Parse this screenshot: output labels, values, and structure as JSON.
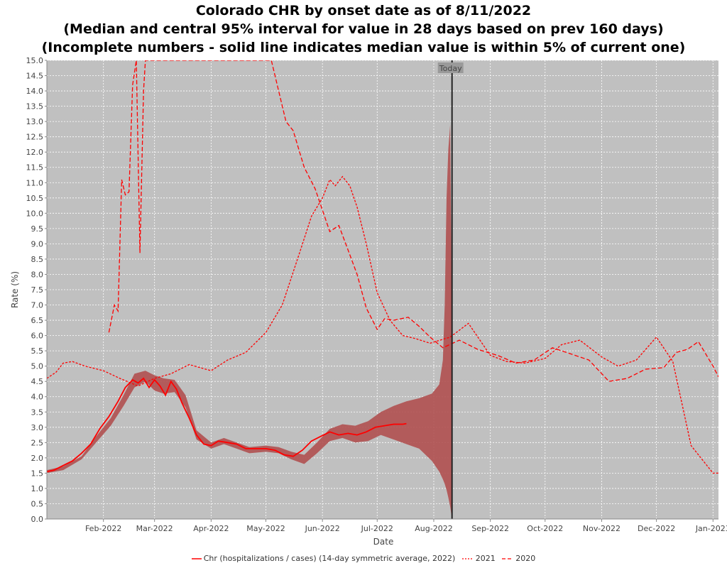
{
  "chart_data": {
    "type": "line",
    "title": [
      "Colorado CHR by onset date as of 8/11/2022",
      "(Median and central 95% interval for value in 28 days based on prev 160 days)",
      "(Incomplete numbers - solid line indicates median value is within 5% of current one)"
    ],
    "xlabel": "Date",
    "ylabel": "Rate (%)",
    "ylim": [
      0,
      15
    ],
    "yticks": [
      0.0,
      0.5,
      1.0,
      1.5,
      2.0,
      2.5,
      3.0,
      3.5,
      4.0,
      4.5,
      5.0,
      5.5,
      6.0,
      6.5,
      7.0,
      7.5,
      8.0,
      8.5,
      9.0,
      9.5,
      10.0,
      10.5,
      11.0,
      11.5,
      12.0,
      12.5,
      13.0,
      13.5,
      14.0,
      14.5,
      15.0
    ],
    "xlim": [
      "2022-01-01",
      "2023-01-04"
    ],
    "xticks": [
      {
        "date": "2022-02-01",
        "label": "Feb-2022"
      },
      {
        "date": "2022-03-01",
        "label": "Mar-2022"
      },
      {
        "date": "2022-04-01",
        "label": "Apr-2022"
      },
      {
        "date": "2022-05-01",
        "label": "May-2022"
      },
      {
        "date": "2022-06-01",
        "label": "Jun-2022"
      },
      {
        "date": "2022-07-01",
        "label": "Jul-2022"
      },
      {
        "date": "2022-08-01",
        "label": "Aug-2022"
      },
      {
        "date": "2022-09-01",
        "label": "Sep-2022"
      },
      {
        "date": "2022-10-01",
        "label": "Oct-2022"
      },
      {
        "date": "2022-11-01",
        "label": "Nov-2022"
      },
      {
        "date": "2022-12-01",
        "label": "Dec-2022"
      },
      {
        "date": "2023-01-01",
        "label": "Jan-2023"
      }
    ],
    "grid": true,
    "legend_position": "bottom",
    "annotation": {
      "label": "Today",
      "date": "2022-08-11"
    },
    "colors": {
      "plot_bg": "#c0c0c0",
      "series": "#ff0000",
      "band": "#b05050",
      "today_line": "#222222",
      "today_label_bg": "#9a9a9a"
    },
    "band": {
      "x": [
        "2022-01-01",
        "2022-01-10",
        "2022-01-20",
        "2022-01-28",
        "2022-02-05",
        "2022-02-12",
        "2022-02-18",
        "2022-02-24",
        "2022-03-01",
        "2022-03-06",
        "2022-03-12",
        "2022-03-18",
        "2022-03-24",
        "2022-04-01",
        "2022-04-08",
        "2022-04-15",
        "2022-04-22",
        "2022-05-01",
        "2022-05-08",
        "2022-05-15",
        "2022-05-22",
        "2022-05-29",
        "2022-06-05",
        "2022-06-12",
        "2022-06-19",
        "2022-06-26",
        "2022-07-03",
        "2022-07-10",
        "2022-07-17",
        "2022-07-24",
        "2022-07-31",
        "2022-08-04",
        "2022-08-06",
        "2022-08-07",
        "2022-08-08",
        "2022-08-09",
        "2022-08-10",
        "2022-08-11"
      ],
      "lower": [
        1.5,
        1.6,
        1.95,
        2.5,
        3.05,
        3.7,
        4.3,
        4.5,
        4.2,
        4.1,
        4.15,
        3.65,
        2.6,
        2.3,
        2.45,
        2.3,
        2.15,
        2.2,
        2.15,
        1.95,
        1.8,
        2.15,
        2.55,
        2.65,
        2.5,
        2.55,
        2.75,
        2.6,
        2.45,
        2.3,
        1.9,
        1.55,
        1.3,
        1.15,
        0.95,
        0.7,
        0.4,
        0.0
      ],
      "upper": [
        1.6,
        1.72,
        2.05,
        2.7,
        3.3,
        4.05,
        4.75,
        4.85,
        4.7,
        4.6,
        4.55,
        4.05,
        2.9,
        2.5,
        2.65,
        2.5,
        2.35,
        2.4,
        2.35,
        2.2,
        2.1,
        2.5,
        2.95,
        3.1,
        3.05,
        3.2,
        3.5,
        3.7,
        3.85,
        3.95,
        4.1,
        4.4,
        5.2,
        7.0,
        10.5,
        12.1,
        12.9,
        6.0
      ]
    },
    "series": [
      {
        "name": "Chr (hospitalizations / cases) (14-day symmetric average, 2022)",
        "style": "solid",
        "x": [
          "2022-01-01",
          "2022-01-05",
          "2022-01-10",
          "2022-01-15",
          "2022-01-20",
          "2022-01-25",
          "2022-01-30",
          "2022-02-04",
          "2022-02-09",
          "2022-02-13",
          "2022-02-17",
          "2022-02-20",
          "2022-02-23",
          "2022-02-26",
          "2022-03-01",
          "2022-03-04",
          "2022-03-07",
          "2022-03-10",
          "2022-03-13",
          "2022-03-16",
          "2022-03-20",
          "2022-03-24",
          "2022-03-28",
          "2022-04-01",
          "2022-04-05",
          "2022-04-10",
          "2022-04-15",
          "2022-04-20",
          "2022-04-25",
          "2022-05-01",
          "2022-05-06",
          "2022-05-11",
          "2022-05-16",
          "2022-05-21",
          "2022-05-26",
          "2022-05-31",
          "2022-06-05",
          "2022-06-10",
          "2022-06-15",
          "2022-06-20",
          "2022-06-25",
          "2022-06-30",
          "2022-07-05",
          "2022-07-10",
          "2022-07-15",
          "2022-07-17"
        ],
        "y": [
          1.55,
          1.6,
          1.75,
          1.9,
          2.15,
          2.45,
          2.95,
          3.35,
          3.85,
          4.3,
          4.55,
          4.45,
          4.6,
          4.3,
          4.55,
          4.35,
          4.05,
          4.5,
          4.25,
          3.8,
          3.3,
          2.75,
          2.45,
          2.4,
          2.55,
          2.5,
          2.45,
          2.3,
          2.3,
          2.3,
          2.25,
          2.1,
          2.05,
          2.25,
          2.55,
          2.7,
          2.85,
          2.75,
          2.8,
          2.75,
          2.85,
          3.0,
          3.05,
          3.1,
          3.1,
          3.12
        ]
      },
      {
        "name": "2021",
        "style": "dashed",
        "x": [
          "2022-01-01",
          "2022-01-06",
          "2022-01-10",
          "2022-01-15",
          "2022-01-22",
          "2022-02-01",
          "2022-02-10",
          "2022-02-20",
          "2022-03-01",
          "2022-03-10",
          "2022-03-20",
          "2022-04-01",
          "2022-04-10",
          "2022-04-20",
          "2022-05-01",
          "2022-05-10",
          "2022-05-20",
          "2022-05-26",
          "2022-06-01",
          "2022-06-05",
          "2022-06-08",
          "2022-06-12",
          "2022-06-16",
          "2022-06-20",
          "2022-06-25",
          "2022-07-01",
          "2022-07-08",
          "2022-07-15",
          "2022-07-22",
          "2022-07-30",
          "2022-08-10",
          "2022-08-20",
          "2022-09-01",
          "2022-09-10",
          "2022-09-20",
          "2022-10-01",
          "2022-10-10",
          "2022-10-20",
          "2022-11-01",
          "2022-11-10",
          "2022-11-20",
          "2022-12-01",
          "2022-12-10",
          "2022-12-20",
          "2023-01-01",
          "2023-01-04"
        ],
        "y": [
          4.6,
          4.8,
          5.1,
          5.15,
          5.0,
          4.85,
          4.6,
          4.35,
          4.6,
          4.75,
          5.05,
          4.85,
          5.2,
          5.45,
          6.1,
          7.0,
          8.8,
          9.9,
          10.5,
          11.1,
          10.9,
          11.2,
          10.9,
          10.2,
          9.0,
          7.4,
          6.5,
          6.0,
          5.9,
          5.75,
          5.95,
          6.4,
          5.35,
          5.15,
          5.1,
          5.25,
          5.7,
          5.85,
          5.3,
          5.0,
          5.2,
          5.95,
          5.15,
          2.4,
          1.5,
          1.5
        ]
      },
      {
        "name": "2020",
        "style": "dashed",
        "x": [
          "2022-02-04",
          "2022-02-07",
          "2022-02-09",
          "2022-02-11",
          "2022-02-13",
          "2022-02-15",
          "2022-02-17",
          "2022-02-19",
          "2022-02-21",
          "2022-02-23",
          "2022-02-24",
          "2022-05-04",
          "2022-05-08",
          "2022-05-12",
          "2022-05-16",
          "2022-05-22",
          "2022-05-28",
          "2022-06-05",
          "2022-06-10",
          "2022-06-15",
          "2022-06-20",
          "2022-06-25",
          "2022-07-01",
          "2022-07-05",
          "2022-07-10",
          "2022-07-18",
          "2022-07-24",
          "2022-07-30",
          "2022-08-06",
          "2022-08-15",
          "2022-08-25",
          "2022-09-05",
          "2022-09-15",
          "2022-09-25",
          "2022-10-05",
          "2022-10-15",
          "2022-10-25",
          "2022-11-05",
          "2022-11-15",
          "2022-11-25",
          "2022-12-05",
          "2022-12-12",
          "2022-12-18",
          "2022-12-24",
          "2023-01-01",
          "2023-01-04"
        ],
        "y": [
          6.1,
          7.0,
          6.8,
          11.1,
          10.6,
          10.7,
          14.2,
          15.0,
          8.7,
          14.0,
          15.0,
          15.0,
          14.0,
          13.0,
          12.7,
          11.5,
          10.8,
          9.4,
          9.6,
          8.8,
          8.0,
          6.9,
          6.2,
          6.55,
          6.5,
          6.6,
          6.3,
          5.95,
          5.6,
          5.85,
          5.55,
          5.35,
          5.1,
          5.2,
          5.6,
          5.4,
          5.2,
          4.5,
          4.6,
          4.9,
          4.95,
          5.45,
          5.55,
          5.8,
          5.0,
          4.65
        ]
      }
    ]
  },
  "legend": {
    "items": [
      {
        "label": "Chr (hospitalizations / cases) (14-day symmetric average, 2022)"
      },
      {
        "label": "2021"
      },
      {
        "label": "2020"
      }
    ]
  }
}
